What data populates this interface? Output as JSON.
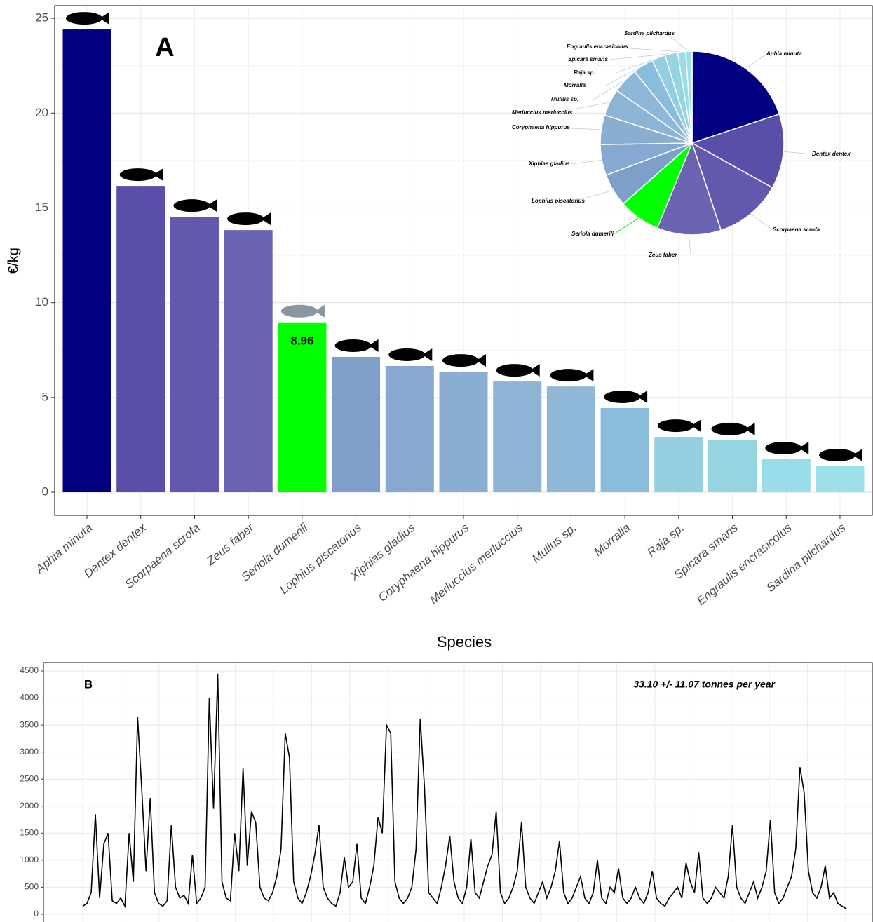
{
  "chart_data": [
    {
      "type": "bar",
      "panel_label": "A",
      "x_label": "Species",
      "y_label": "€/kg",
      "categories": [
        "Aphia minuta",
        "Dentex dentex",
        "Scorpaena scrofa",
        "Zeus faber",
        "Seriola dumerili",
        "Lophius piscatorius",
        "Xiphias gladius",
        "Coryphaena hippurus",
        "Merluccius merluccius",
        "Mullus sp.",
        "Morralla",
        "Raja sp.",
        "Spicara smaris",
        "Engraulis encrasicolus",
        "Sardina pilchardus"
      ],
      "values": [
        24.41,
        16.16,
        14.53,
        13.83,
        8.96,
        7.14,
        6.66,
        6.36,
        5.84,
        5.58,
        4.44,
        2.92,
        2.74,
        1.74,
        1.37
      ],
      "value_labels": [
        null,
        null,
        null,
        null,
        "8.96",
        null,
        null,
        null,
        null,
        null,
        null,
        null,
        null,
        null,
        null
      ],
      "colors": [
        "#000080",
        "#5a4fa8",
        "#6258ad",
        "#6a64b2",
        "#00ff00",
        "#7f9fcb",
        "#87a8d0",
        "#8aadd2",
        "#8db3d5",
        "#8fb8d8",
        "#8abcdb",
        "#93cfe0",
        "#95d4e1",
        "#9addea",
        "#9ce0e8"
      ],
      "ylim": [
        -1.22,
        25.67
      ],
      "yticks": [
        0,
        5,
        10,
        15,
        20,
        25
      ],
      "grid": true,
      "inset": "pie"
    },
    {
      "type": "line",
      "panel_label": "B",
      "annotation": "33.10 +/- 11.07 tonnes per year",
      "color": "#000000",
      "values": [
        150,
        200,
        400,
        1850,
        300,
        1300,
        1500,
        250,
        200,
        300,
        150,
        1500,
        600,
        3650,
        2300,
        800,
        2150,
        400,
        200,
        150,
        250,
        1650,
        500,
        300,
        350,
        200,
        1100,
        200,
        300,
        500,
        4000,
        1950,
        4450,
        600,
        300,
        250,
        1500,
        800,
        2700,
        900,
        1900,
        1700,
        500,
        300,
        250,
        400,
        700,
        1200,
        3350,
        2900,
        600,
        300,
        200,
        400,
        700,
        1100,
        1650,
        500,
        300,
        200,
        150,
        400,
        1050,
        500,
        600,
        1300,
        300,
        200,
        500,
        900,
        1800,
        1500,
        3500,
        3350,
        600,
        300,
        200,
        300,
        500,
        1200,
        3620,
        2350,
        400,
        300,
        200,
        500,
        900,
        1450,
        600,
        300,
        200,
        500,
        1400,
        400,
        300,
        600,
        900,
        1100,
        1900,
        400,
        200,
        300,
        500,
        800,
        1700,
        500,
        300,
        200,
        400,
        600,
        300,
        500,
        800,
        1350,
        400,
        200,
        300,
        500,
        700,
        300,
        200,
        400,
        1000,
        300,
        200,
        500,
        400,
        850,
        300,
        200,
        300,
        500,
        300,
        200,
        400,
        800,
        300,
        200,
        150,
        300,
        400,
        500,
        300,
        950,
        600,
        400,
        1150,
        300,
        200,
        300,
        500,
        400,
        300,
        700,
        1650,
        500,
        300,
        200,
        400,
        600,
        300,
        500,
        800,
        1750,
        400,
        200,
        300,
        500,
        700,
        1200,
        2720,
        2250,
        800,
        400,
        300,
        500,
        900,
        300,
        400,
        200,
        150,
        100
      ],
      "ylim": [
        -143,
        4656
      ],
      "yticks": [
        0,
        500,
        1000,
        1500,
        2000,
        2500,
        3000,
        3500,
        4000,
        4500
      ],
      "grid": true
    }
  ]
}
